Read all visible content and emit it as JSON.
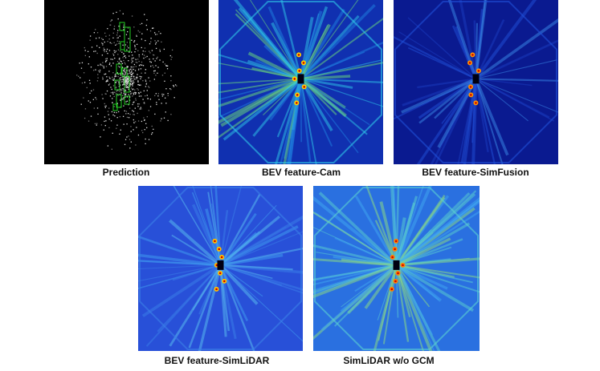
{
  "panels": [
    {
      "caption": "Prediction"
    },
    {
      "caption": "BEV feature-Cam"
    },
    {
      "caption": "BEV feature-SimFusion"
    },
    {
      "caption": "BEV feature-SimLiDAR"
    },
    {
      "caption": "SimLiDAR w/o GCM"
    }
  ]
}
